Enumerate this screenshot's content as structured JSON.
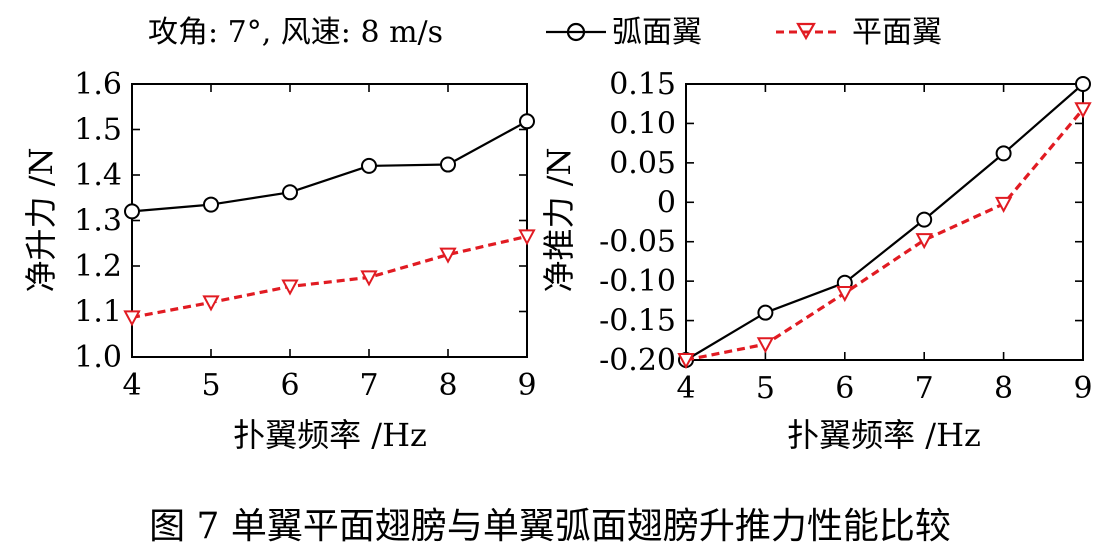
{
  "header": {
    "condition": "攻角: 7°, 风速: 8 m/s"
  },
  "legend": [
    {
      "name": "弧面翼",
      "color": "#000000",
      "marker": "circle-icon",
      "dash": "solid"
    },
    {
      "name": "平面翼",
      "color": "#e11b22",
      "marker": "triangle-down-icon",
      "dash": "dashed"
    }
  ],
  "caption": "图 7    单翼平面翅膀与单翼弧面翅膀升推力性能比较",
  "chart_data": [
    {
      "type": "line",
      "id": "lift",
      "title": "",
      "xlabel": "扑翼频率 /Hz",
      "ylabel": "净升力 /N",
      "x": [
        4,
        5,
        6,
        7,
        8,
        9
      ],
      "xlim": [
        4,
        9
      ],
      "ylim": [
        1.0,
        1.6
      ],
      "xticks": [
        "4",
        "5",
        "6",
        "7",
        "8",
        "9"
      ],
      "xtick_values": [
        4,
        5,
        6,
        7,
        8,
        9
      ],
      "yticks": [
        "1.0",
        "1.1",
        "1.2",
        "1.3",
        "1.4",
        "1.5",
        "1.6"
      ],
      "ytick_values": [
        1.0,
        1.1,
        1.2,
        1.3,
        1.4,
        1.5,
        1.6
      ],
      "grid": false,
      "series": [
        {
          "name": "弧面翼",
          "values": [
            1.32,
            1.335,
            1.362,
            1.42,
            1.423,
            1.518
          ]
        },
        {
          "name": "平面翼",
          "values": [
            1.087,
            1.12,
            1.155,
            1.175,
            1.225,
            1.265
          ]
        }
      ]
    },
    {
      "type": "line",
      "id": "thrust",
      "title": "",
      "xlabel": "扑翼频率 /Hz",
      "ylabel": "净推力 /N",
      "x": [
        4,
        5,
        6,
        7,
        8,
        9
      ],
      "xlim": [
        4,
        9
      ],
      "ylim": [
        -0.2,
        0.15
      ],
      "xticks": [
        "4",
        "5",
        "6",
        "7",
        "8",
        "9"
      ],
      "xtick_values": [
        4,
        5,
        6,
        7,
        8,
        9
      ],
      "yticks": [
        "-0.20",
        "-0.15",
        "-0.10",
        "-0.05",
        "0",
        "0.05",
        "0.10",
        "0.15"
      ],
      "ytick_values": [
        -0.2,
        -0.15,
        -0.1,
        -0.05,
        0,
        0.05,
        0.1,
        0.15
      ],
      "grid": false,
      "series": [
        {
          "name": "弧面翼",
          "values": [
            -0.2,
            -0.14,
            -0.102,
            -0.022,
            0.062,
            0.15
          ]
        },
        {
          "name": "平面翼",
          "values": [
            -0.2,
            -0.18,
            -0.115,
            -0.048,
            -0.002,
            0.118
          ]
        }
      ]
    }
  ]
}
